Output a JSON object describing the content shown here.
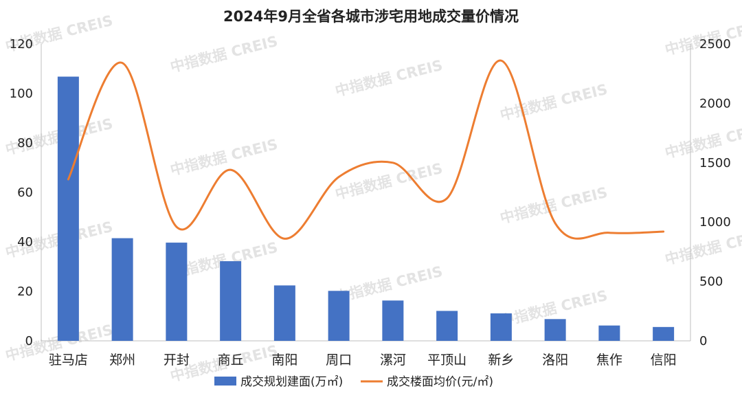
{
  "watermark": "中指数据 CREIS",
  "chart_data": {
    "type": "bar+line",
    "title": "2024年9月全省各城市涉宅用地成交量价情况",
    "categories": [
      "驻马店",
      "郑州",
      "开封",
      "商丘",
      "南阳",
      "周口",
      "漯河",
      "平顶山",
      "新乡",
      "洛阳",
      "焦作",
      "信阳"
    ],
    "series": [
      {
        "name": "成交规划建面(万㎡)",
        "type": "bar",
        "axis": "left",
        "color": "#4472C4",
        "values": [
          106.8,
          41.5,
          39.7,
          32.2,
          22.4,
          20.2,
          16.3,
          12.1,
          11.1,
          8.8,
          6.2,
          5.6
        ]
      },
      {
        "name": "成交楼面均价(元/㎡)",
        "type": "line",
        "smooth": true,
        "axis": "right",
        "color": "#ED7D31",
        "values": [
          1360,
          2340,
          960,
          1440,
          860,
          1380,
          1500,
          1200,
          2360,
          990,
          910,
          920
        ]
      }
    ],
    "y_left": {
      "min": 0,
      "max": 120,
      "ticks": [
        0,
        20,
        40,
        60,
        80,
        100,
        120
      ]
    },
    "y_right": {
      "min": 0,
      "max": 2500,
      "ticks": [
        0,
        500,
        1000,
        1500,
        2000,
        2500
      ]
    },
    "legend_position": "bottom",
    "grid": false
  }
}
